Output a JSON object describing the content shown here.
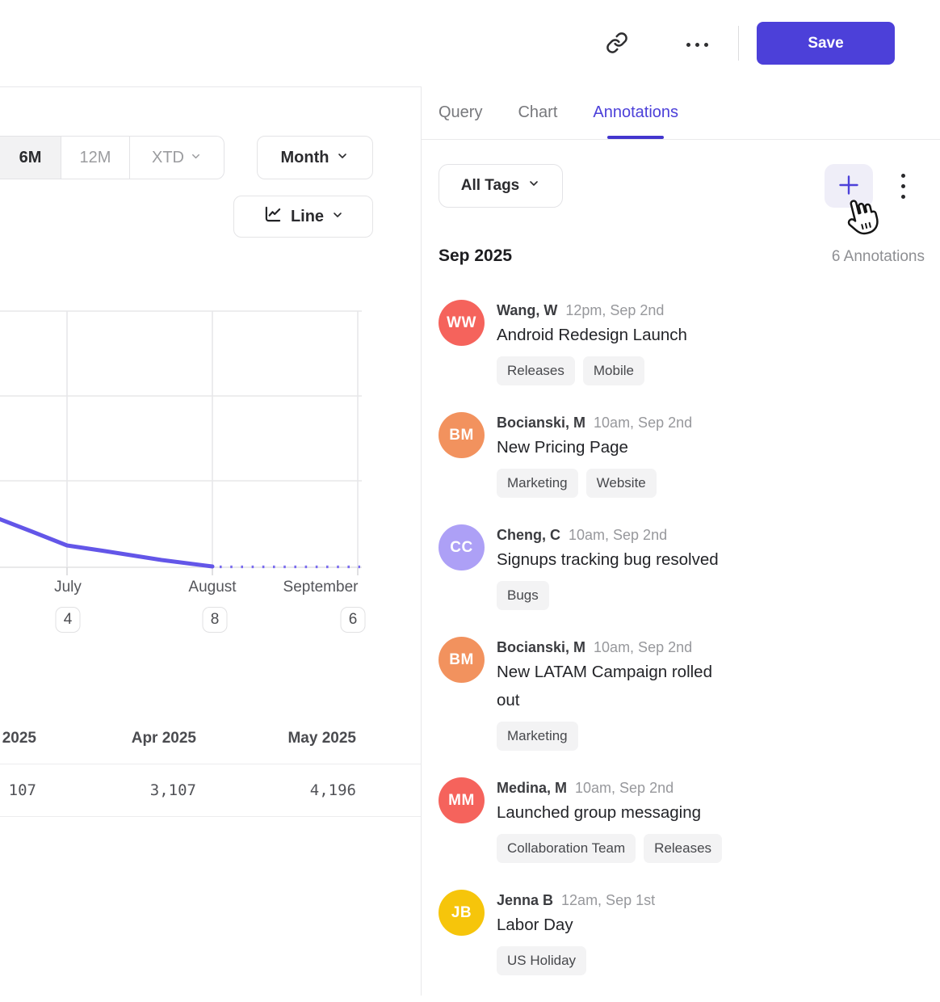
{
  "header": {
    "save_label": "Save"
  },
  "icons": {
    "link": "link-icon",
    "more": "ellipsis-icon",
    "kebab": "kebab-menu-icon",
    "add": "plus-icon",
    "chevron": "chevron-down-icon",
    "chart_type": "line-chart-icon",
    "cursor": "hand-pointer-cursor"
  },
  "colors": {
    "accent": "#4C40D9",
    "accent_soft_bg": "#EFEEF8",
    "chart_line": "#6356E8",
    "chart_line_projected": "#7A6BEF",
    "tag_bg": "#F3F3F4",
    "grid": "#E7E7E9"
  },
  "tabs": {
    "items": [
      {
        "label": "Query",
        "active": false
      },
      {
        "label": "Chart",
        "active": false
      },
      {
        "label": "Annotations",
        "active": true
      }
    ]
  },
  "left_controls": {
    "ranges": [
      {
        "label": "6M",
        "active": true
      },
      {
        "label": "12M",
        "active": false
      },
      {
        "label": "XTD",
        "active": false,
        "has_dropdown": true
      }
    ],
    "granularity_label": "Month",
    "chart_type_label": "Line"
  },
  "chart_data": {
    "type": "line",
    "x_labels": [
      "July",
      "August",
      "September"
    ],
    "annotation_count_badges": [
      4,
      8,
      6
    ],
    "series": [
      {
        "name": "metric (y-axis labels not visible)",
        "style": "solid declining line, dotted flat projection after August",
        "points_relative_height": [
          {
            "x": "left edge (pre-July)",
            "v": 0.19
          },
          {
            "x": "July",
            "v": 0.09
          },
          {
            "x": "August",
            "v": 0.0
          },
          {
            "x": "September (dotted)",
            "v": 0.0
          }
        ]
      }
    ],
    "grid": true,
    "legend": "none"
  },
  "summary_table": {
    "headers": [
      "2025",
      "Apr 2025",
      "May 2025"
    ],
    "values": [
      "107",
      "3,107",
      "4,196"
    ]
  },
  "panel": {
    "filter_label": "All Tags",
    "month_header": "Sep 2025",
    "count_label": "6 Annotations",
    "items": [
      {
        "initials": "WW",
        "avatar_color": "#F5635C",
        "author": "Wang, W",
        "timestamp": "12pm, Sep 2nd",
        "title": "Android Redesign Launch",
        "tags": [
          "Releases",
          "Mobile"
        ]
      },
      {
        "initials": "BM",
        "avatar_color": "#F2925E",
        "author": "Bocianski, M",
        "timestamp": "10am, Sep 2nd",
        "title": "New Pricing Page",
        "tags": [
          "Marketing",
          "Website"
        ]
      },
      {
        "initials": "CC",
        "avatar_color": "#ADA0F6",
        "author": "Cheng, C",
        "timestamp": "10am, Sep 2nd",
        "title": "Signups tracking bug resolved",
        "tags": [
          "Bugs"
        ]
      },
      {
        "initials": "BM",
        "avatar_color": "#F2925E",
        "author": "Bocianski, M",
        "timestamp": "10am, Sep 2nd",
        "title": "New LATAM Campaign rolled out",
        "tags": [
          "Marketing"
        ]
      },
      {
        "initials": "MM",
        "avatar_color": "#F5635C",
        "author": "Medina, M",
        "timestamp": "10am, Sep 2nd",
        "title": "Launched group messaging",
        "tags": [
          "Collaboration Team",
          "Releases"
        ]
      },
      {
        "initials": "JB",
        "avatar_color": "#F6C50B",
        "author": "Jenna B",
        "timestamp": "12am, Sep 1st",
        "title": "Labor Day",
        "tags": [
          "US Holiday"
        ]
      }
    ]
  }
}
